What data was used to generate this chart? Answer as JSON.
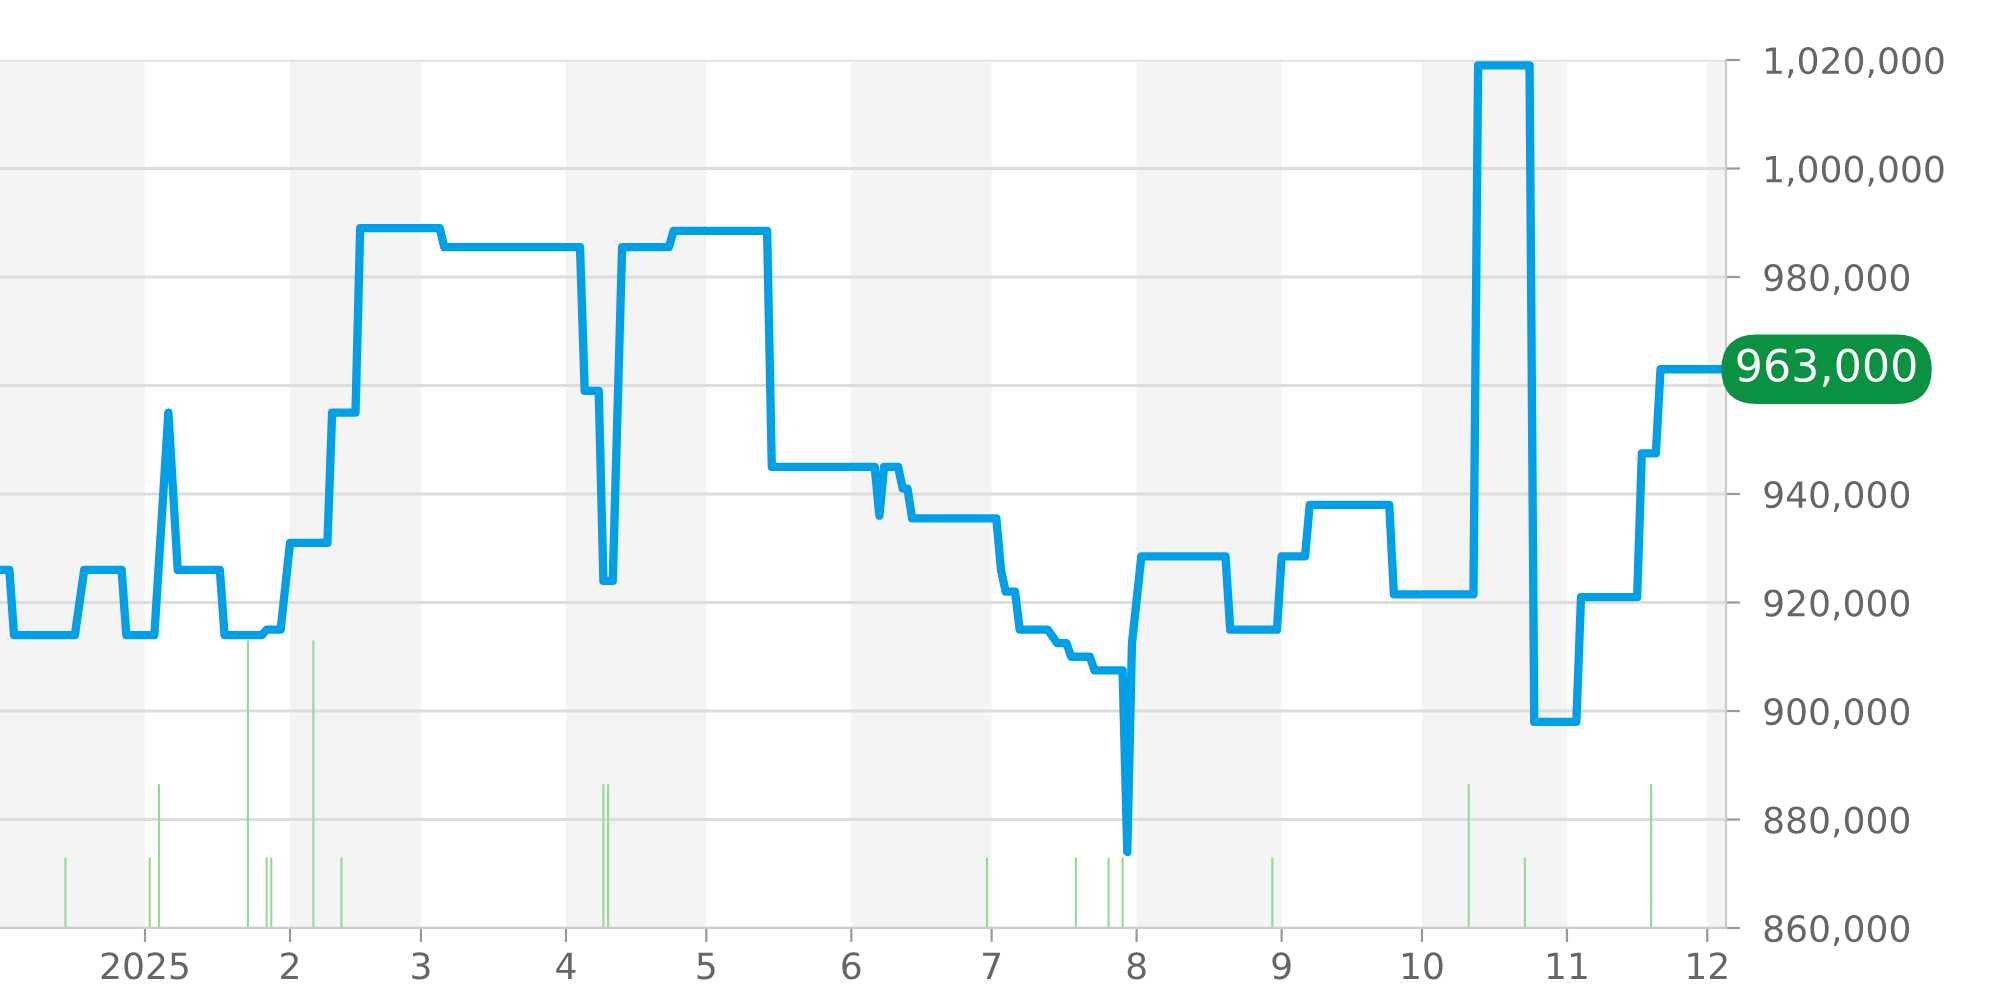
{
  "chart_data": {
    "type": "line",
    "xlim": [
      "2024-12-01",
      "2025-12-05"
    ],
    "xticks": [
      {
        "value": "2025-01-01",
        "label": "2025"
      },
      {
        "value": "2025-02-01",
        "label": "2"
      },
      {
        "value": "2025-03-01",
        "label": "3"
      },
      {
        "value": "2025-04-01",
        "label": "4"
      },
      {
        "value": "2025-05-01",
        "label": "5"
      },
      {
        "value": "2025-06-01",
        "label": "6"
      },
      {
        "value": "2025-07-01",
        "label": "7"
      },
      {
        "value": "2025-08-01",
        "label": "8"
      },
      {
        "value": "2025-09-01",
        "label": "9"
      },
      {
        "value": "2025-10-01",
        "label": "10"
      },
      {
        "value": "2025-11-01",
        "label": "11"
      },
      {
        "value": "2025-12-01",
        "label": "12"
      }
    ],
    "ylim": [
      860000,
      1020000
    ],
    "yticks": [
      {
        "value": 860000,
        "label": "860,000"
      },
      {
        "value": 880000,
        "label": "880,000"
      },
      {
        "value": 900000,
        "label": "900,000"
      },
      {
        "value": 920000,
        "label": "920,000"
      },
      {
        "value": 940000,
        "label": "940,000"
      },
      {
        "value": 960000,
        "label": null
      },
      {
        "value": 980000,
        "label": "980,000"
      },
      {
        "value": 1000000,
        "label": "1,000,000"
      },
      {
        "value": 1020000,
        "label": "1,020,000"
      }
    ],
    "grid": "y",
    "legend": false,
    "marker": "none",
    "line_style": "solid",
    "bands": [
      {
        "axis": "x",
        "from": "2024-12-01",
        "to": "2025-01-01",
        "color": "#f4f4f4"
      },
      {
        "axis": "x",
        "from": "2025-02-01",
        "to": "2025-03-01",
        "color": "#f4f4f4"
      },
      {
        "axis": "x",
        "from": "2025-04-01",
        "to": "2025-05-01",
        "color": "#f4f4f4"
      },
      {
        "axis": "x",
        "from": "2025-06-01",
        "to": "2025-07-01",
        "color": "#f4f4f4"
      },
      {
        "axis": "x",
        "from": "2025-08-01",
        "to": "2025-09-01",
        "color": "#f4f4f4"
      },
      {
        "axis": "x",
        "from": "2025-10-01",
        "to": "2025-11-01",
        "color": "#f4f4f4"
      },
      {
        "axis": "x",
        "from": "2025-12-01",
        "to": "2025-12-05",
        "color": "#f4f4f4"
      }
    ],
    "series": [
      {
        "type": "bar",
        "color": "#94d994",
        "x": [
          "2024-12-15",
          "2025-01-02",
          "2025-01-04",
          "2025-01-23",
          "2025-01-27",
          "2025-01-28",
          "2025-02-06",
          "2025-02-12",
          "2025-04-09",
          "2025-04-10",
          "2025-06-30",
          "2025-07-19",
          "2025-07-26",
          "2025-07-29",
          "2025-08-30",
          "2025-10-11",
          "2025-10-23",
          "2025-11-19"
        ],
        "base": [
          860000,
          860000,
          860000,
          860000,
          860000,
          860000,
          860000,
          860000,
          860000,
          860000,
          860000,
          860000,
          860000,
          860000,
          860000,
          860000,
          860000,
          860000
        ],
        "values": [
          13000,
          13000,
          26500,
          53000,
          13000,
          13000,
          53000,
          13000,
          26500,
          26500,
          13000,
          13000,
          13000,
          13000,
          13000,
          26500,
          13000,
          26500
        ]
      },
      {
        "color": "#00a0e9",
        "x": [
          "2024-12-01",
          "2024-12-03",
          "2024-12-04",
          "2024-12-17",
          "2024-12-19",
          "2024-12-27",
          "2024-12-28",
          "2025-01-03",
          "2025-01-06",
          "2025-01-08",
          "2025-01-17",
          "2025-01-18",
          "2025-01-26",
          "2025-01-27",
          "2025-01-30",
          "2025-02-01",
          "2025-02-09",
          "2025-02-10",
          "2025-02-15",
          "2025-02-16",
          "2025-03-05",
          "2025-03-06",
          "2025-04-04",
          "2025-04-05",
          "2025-04-08",
          "2025-04-09",
          "2025-04-11",
          "2025-04-13",
          "2025-04-23",
          "2025-04-24",
          "2025-05-14",
          "2025-05-15",
          "2025-06-06",
          "2025-06-07",
          "2025-06-08",
          "2025-06-11",
          "2025-06-12",
          "2025-06-13",
          "2025-06-14",
          "2025-07-02",
          "2025-07-03",
          "2025-07-04",
          "2025-07-06",
          "2025-07-07",
          "2025-07-13",
          "2025-07-15",
          "2025-07-17",
          "2025-07-18",
          "2025-07-22",
          "2025-07-23",
          "2025-07-29",
          "2025-07-30",
          "2025-07-31",
          "2025-08-02",
          "2025-08-20",
          "2025-08-21",
          "2025-08-31",
          "2025-09-01",
          "2025-09-06",
          "2025-09-07",
          "2025-09-24",
          "2025-09-25",
          "2025-10-12",
          "2025-10-13",
          "2025-10-24",
          "2025-10-25",
          "2025-11-03",
          "2025-11-04",
          "2025-11-16",
          "2025-11-17",
          "2025-11-20",
          "2025-11-21",
          "2025-12-04"
        ],
        "values": [
          926000,
          926000,
          914000,
          914000,
          926000,
          926000,
          914000,
          914000,
          955000,
          926000,
          926000,
          914000,
          914000,
          915000,
          915000,
          931000,
          931000,
          955000,
          955000,
          989000,
          989000,
          985500,
          985500,
          959000,
          959000,
          924000,
          924000,
          985500,
          985500,
          988500,
          988500,
          945000,
          945000,
          936000,
          945000,
          945000,
          941000,
          941000,
          935500,
          935500,
          926000,
          922000,
          922000,
          915000,
          915000,
          912500,
          912500,
          910000,
          910000,
          907500,
          907500,
          874000,
          912500,
          928500,
          928500,
          915000,
          915000,
          928500,
          928500,
          938000,
          938000,
          921500,
          921500,
          1019000,
          1019000,
          898000,
          898000,
          921000,
          921000,
          947500,
          947500,
          963000,
          963000
        ]
      }
    ],
    "annotations": [
      {
        "text": "963,000",
        "x": "2025-12-04",
        "y": 963000
      }
    ]
  }
}
